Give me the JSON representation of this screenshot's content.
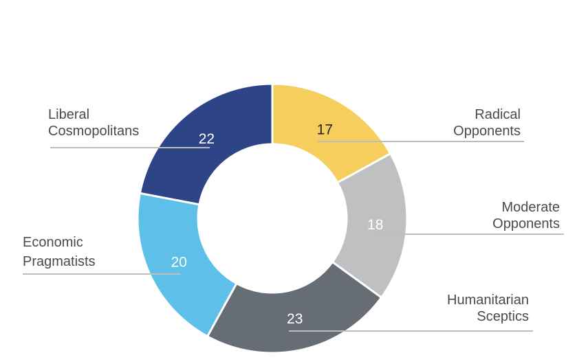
{
  "chart_data": {
    "type": "pie",
    "style": "donut",
    "grid": false,
    "legend": "callout labels beside each slice",
    "slices": [
      {
        "label": "Radical Opponents",
        "lines": [
          "Radical",
          "Opponents"
        ],
        "value": 17,
        "color": "#f5ce5e",
        "value_text_color": "#222222"
      },
      {
        "label": "Moderate Opponents",
        "lines": [
          "Moderate",
          "Opponents"
        ],
        "value": 18,
        "color": "#bfc0c2",
        "value_text_color": "#ffffff"
      },
      {
        "label": "Humanitarian Sceptics",
        "lines": [
          "Humanitarian",
          "Sceptics"
        ],
        "value": 23,
        "color": "#666d75",
        "value_text_color": "#ffffff"
      },
      {
        "label": "Economic Pragmatists",
        "lines": [
          "Economic",
          "Pragmatists"
        ],
        "value": 20,
        "color": "#5ec0e8",
        "value_text_color": "#ffffff"
      },
      {
        "label": "Liberal Cosmopolitans",
        "lines": [
          "Liberal",
          "Cosmopolitans"
        ],
        "value": 22,
        "color": "#2d4486",
        "value_text_color": "#ffffff"
      }
    ]
  }
}
